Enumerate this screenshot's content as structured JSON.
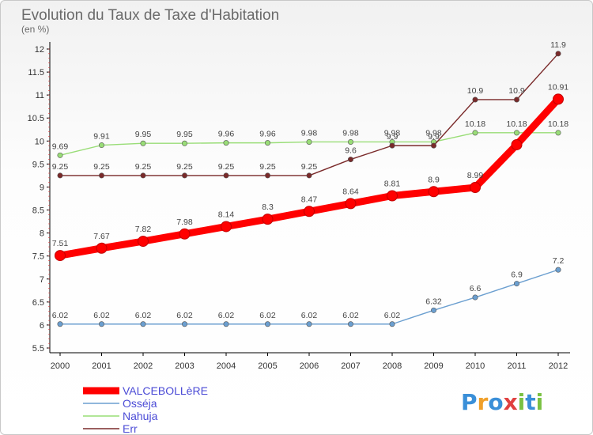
{
  "chart_data": {
    "type": "line",
    "title": "Evolution du Taux de Taxe d'Habitation",
    "subtitle": "(en %)",
    "x": [
      "2000",
      "2001",
      "2002",
      "2003",
      "2004",
      "2005",
      "2006",
      "2007",
      "2008",
      "2009",
      "2010",
      "2011",
      "2012"
    ],
    "ylim": [
      5.5,
      12
    ],
    "yticks": [
      "5.5",
      "6",
      "6.5",
      "7",
      "7.5",
      "8",
      "8.5",
      "9",
      "9.5",
      "10",
      "10.5",
      "11",
      "11.5",
      "12"
    ],
    "grid": false,
    "legend": "bottom-left",
    "series": [
      {
        "name": "VALCEBOLLèRE",
        "color": "#ff0000",
        "values": [
          7.51,
          7.67,
          7.82,
          7.98,
          8.14,
          8.3,
          8.47,
          8.64,
          8.81,
          8.9,
          8.99,
          9.92,
          10.91
        ],
        "labels": [
          "7.51",
          "7.67",
          "7.82",
          "7.98",
          "8.14",
          "8.3",
          "8.47",
          "8.64",
          "8.81",
          "8.9",
          "8.99",
          "",
          "10.91"
        ]
      },
      {
        "name": "Osséja",
        "color": "#6b9fd0",
        "values": [
          6.02,
          6.02,
          6.02,
          6.02,
          6.02,
          6.02,
          6.02,
          6.02,
          6.02,
          6.32,
          6.6,
          6.9,
          7.2
        ],
        "labels": [
          "6.02",
          "6.02",
          "6.02",
          "6.02",
          "6.02",
          "6.02",
          "6.02",
          "6.02",
          "6.02",
          "6.32",
          "6.6",
          "6.9",
          "7.2"
        ]
      },
      {
        "name": "Nahuja",
        "color": "#99dd77",
        "values": [
          9.69,
          9.91,
          9.95,
          9.95,
          9.96,
          9.96,
          9.98,
          9.98,
          9.98,
          9.98,
          10.18,
          10.18,
          10.18
        ],
        "labels": [
          "9.69",
          "9.91",
          "9.95",
          "9.95",
          "9.96",
          "9.96",
          "9.98",
          "9.98",
          "9.98",
          "9.98",
          "10.18",
          "10.18",
          "10.18"
        ]
      },
      {
        "name": "Err",
        "color": "#7a2a2a",
        "values": [
          9.25,
          9.25,
          9.25,
          9.25,
          9.25,
          9.25,
          9.25,
          9.6,
          9.9,
          9.9,
          10.9,
          10.9,
          11.9
        ],
        "labels": [
          "9.25",
          "9.25",
          "9.25",
          "9.25",
          "9.25",
          "9.25",
          "9.25",
          "9.6",
          "9.9",
          "9.9",
          "10.9",
          "10.9",
          "11.9"
        ]
      }
    ]
  },
  "brand": {
    "logo_text": "Proxiti"
  }
}
